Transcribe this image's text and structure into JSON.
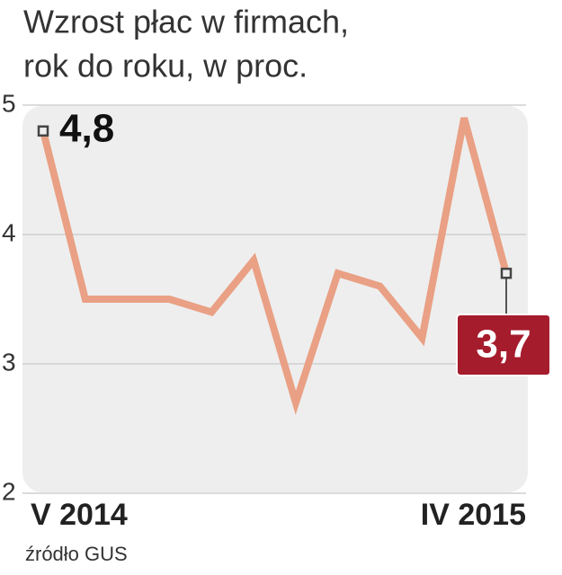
{
  "chart_data": {
    "type": "line",
    "title": [
      "Wzrost płac w firmach,",
      "rok do roku, w proc."
    ],
    "source": "źródło GUS",
    "categories": [
      "V 2014",
      null,
      null,
      null,
      null,
      null,
      null,
      null,
      null,
      null,
      null,
      "IV 2015"
    ],
    "series": [
      {
        "color": "#e9a084",
        "values": [
          4.8,
          3.5,
          3.5,
          3.5,
          3.4,
          3.8,
          2.7,
          3.7,
          3.6,
          3.2,
          4.9,
          3.7
        ],
        "value_labels": [
          "4,8",
          null,
          null,
          null,
          null,
          null,
          null,
          null,
          null,
          null,
          null,
          "3,7"
        ]
      }
    ],
    "ylim": [
      2,
      5
    ],
    "yticks": [
      5,
      4,
      3,
      2
    ],
    "grid": true
  }
}
